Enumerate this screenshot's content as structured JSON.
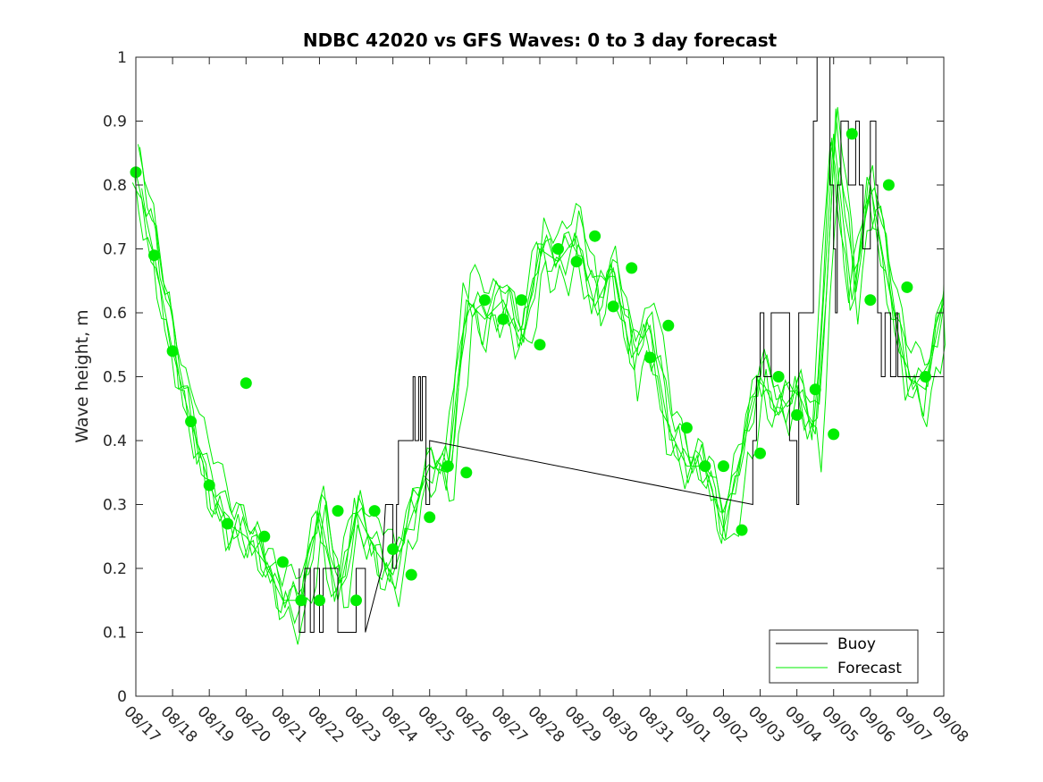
{
  "chart_data": {
    "type": "line",
    "title": "NDBC 42020 vs GFS Waves: 0 to 3 day forecast",
    "xlabel": "",
    "ylabel": "Wave height, m",
    "ylim": [
      0,
      1
    ],
    "yticks": [
      0,
      0.1,
      0.2,
      0.3,
      0.4,
      0.5,
      0.6,
      0.7,
      0.8,
      0.9,
      1
    ],
    "ytick_labels": [
      "0",
      "0.1",
      "0.2",
      "0.3",
      "0.4",
      "0.5",
      "0.6",
      "0.7",
      "0.8",
      "0.9",
      "1"
    ],
    "xlim_days": [
      0,
      22
    ],
    "xtick_labels": [
      "08/17",
      "08/18",
      "08/19",
      "08/20",
      "08/21",
      "08/22",
      "08/23",
      "08/24",
      "08/25",
      "08/26",
      "08/27",
      "08/28",
      "08/29",
      "08/30",
      "08/31",
      "09/01",
      "09/02",
      "09/03",
      "09/04",
      "09/05",
      "09/06",
      "09/07",
      "09/08"
    ],
    "grid": false,
    "legend": {
      "location": "bottom-right",
      "entries": [
        {
          "label": "Buoy",
          "color": "#000000"
        },
        {
          "label": "Forecast",
          "color": "#00ee00"
        }
      ]
    },
    "colors": {
      "buoy": "#000000",
      "forecast": "#00ee00",
      "markers": "#00ee00"
    },
    "series": [
      {
        "name": "Buoy",
        "x": [
          4.45,
          4.45,
          4.6,
          4.6,
          4.75,
          4.75,
          4.85,
          4.85,
          5.0,
          5.0,
          5.1,
          5.1,
          5.2,
          5.2,
          5.5,
          5.5,
          6.0,
          6.0,
          6.15,
          6.15,
          6.25,
          6.25,
          6.7,
          6.8,
          7.0,
          7.0,
          7.1,
          7.1,
          7.15,
          7.15,
          7.2,
          7.55,
          7.55,
          7.6,
          7.6,
          7.7,
          7.7,
          7.75,
          7.75,
          7.8,
          7.8,
          7.9,
          7.9,
          8.0,
          8.0,
          16.8,
          16.8,
          16.9,
          16.9,
          17.0,
          17.0,
          17.1,
          17.1,
          17.3,
          17.3,
          17.8,
          17.8,
          18.0,
          18.0,
          18.05,
          18.05,
          18.45,
          18.45,
          18.55,
          18.55,
          18.9,
          18.9,
          19.0,
          19.0,
          19.05,
          19.05,
          19.1,
          19.1,
          19.2,
          19.2,
          19.4,
          19.4,
          19.6,
          19.6,
          19.7,
          19.7,
          19.8,
          19.8,
          20.0,
          20.0,
          20.15,
          20.15,
          20.2,
          20.2,
          20.3,
          20.3,
          20.4,
          20.4,
          20.55,
          20.55,
          20.7,
          20.7,
          20.75,
          20.75,
          20.85,
          20.85,
          21.2,
          21.2,
          21.5,
          21.5,
          22.0
        ],
        "y": [
          0.2,
          0.1,
          0.1,
          0.2,
          0.2,
          0.1,
          0.1,
          0.2,
          0.2,
          0.1,
          0.1,
          0.2,
          0.2,
          0.2,
          0.2,
          0.1,
          0.1,
          0.2,
          0.2,
          0.2,
          0.2,
          0.1,
          0.2,
          0.3,
          0.3,
          0.2,
          0.2,
          0.3,
          0.3,
          0.4,
          0.4,
          0.4,
          0.5,
          0.5,
          0.4,
          0.4,
          0.5,
          0.5,
          0.4,
          0.4,
          0.5,
          0.5,
          0.3,
          0.3,
          0.4,
          0.3,
          0.4,
          0.4,
          0.5,
          0.5,
          0.6,
          0.6,
          0.5,
          0.5,
          0.6,
          0.6,
          0.4,
          0.4,
          0.3,
          0.3,
          0.6,
          0.6,
          0.9,
          0.9,
          1.0,
          1.0,
          0.8,
          0.8,
          0.7,
          0.7,
          0.6,
          0.6,
          0.8,
          0.8,
          0.9,
          0.9,
          0.8,
          0.8,
          0.9,
          0.9,
          0.8,
          0.8,
          0.7,
          0.7,
          0.9,
          0.9,
          0.8,
          0.8,
          0.6,
          0.6,
          0.5,
          0.5,
          0.6,
          0.6,
          0.5,
          0.5,
          0.6,
          0.6,
          0.5,
          0.5,
          0.5,
          0.5,
          0.5,
          0.5,
          0.5,
          0.5
        ]
      },
      {
        "name": "Forecast",
        "x": [
          0,
          0.5,
          1,
          1.5,
          2,
          2.5,
          3,
          3.5,
          4,
          4.5,
          5,
          5.5,
          6,
          6.5,
          7,
          7.5,
          8,
          8.5,
          9,
          9.5,
          10,
          10.5,
          11,
          11.5,
          12,
          12.5,
          13,
          13.5,
          14,
          14.5,
          15,
          15.5,
          16,
          16.5,
          17,
          17.5,
          18,
          18.5,
          19,
          19.5,
          20,
          20.5,
          21,
          21.5,
          22
        ],
        "y": [
          0.82,
          0.69,
          0.54,
          0.43,
          0.33,
          0.27,
          0.25,
          0.21,
          0.15,
          0.15,
          0.29,
          0.15,
          0.29,
          0.23,
          0.19,
          0.28,
          0.36,
          0.35,
          0.62,
          0.59,
          0.62,
          0.55,
          0.7,
          0.68,
          0.72,
          0.61,
          0.67,
          0.53,
          0.58,
          0.42,
          0.36,
          0.36,
          0.26,
          0.38,
          0.5,
          0.44,
          0.48,
          0.41,
          0.88,
          0.62,
          0.8,
          0.64,
          0.5,
          0.48,
          0.62
        ]
      },
      {
        "name": "Forecast init points",
        "x": [
          0,
          0.5,
          1,
          1.5,
          2,
          2.5,
          3,
          3.5,
          4,
          4.5,
          5,
          5.5,
          6,
          6.5,
          7,
          7.5,
          8,
          8.5,
          9,
          9.5,
          10,
          10.5,
          11,
          11.5,
          12,
          12.5,
          13,
          13.5,
          14,
          14.5,
          15,
          15.5,
          16,
          16.5,
          17,
          17.5,
          18,
          18.5,
          19,
          19.5,
          20,
          20.5,
          21,
          21.5
        ],
        "y": [
          0.82,
          0.69,
          0.54,
          0.43,
          0.33,
          0.27,
          0.49,
          0.25,
          0.21,
          0.15,
          0.15,
          0.29,
          0.15,
          0.29,
          0.23,
          0.19,
          0.28,
          0.36,
          0.35,
          0.62,
          0.59,
          0.62,
          0.55,
          0.7,
          0.68,
          0.72,
          0.61,
          0.67,
          0.53,
          0.58,
          0.42,
          0.36,
          0.36,
          0.26,
          0.38,
          0.5,
          0.44,
          0.48,
          0.41,
          0.88,
          0.62,
          0.8,
          0.64,
          0.5
        ]
      }
    ]
  }
}
